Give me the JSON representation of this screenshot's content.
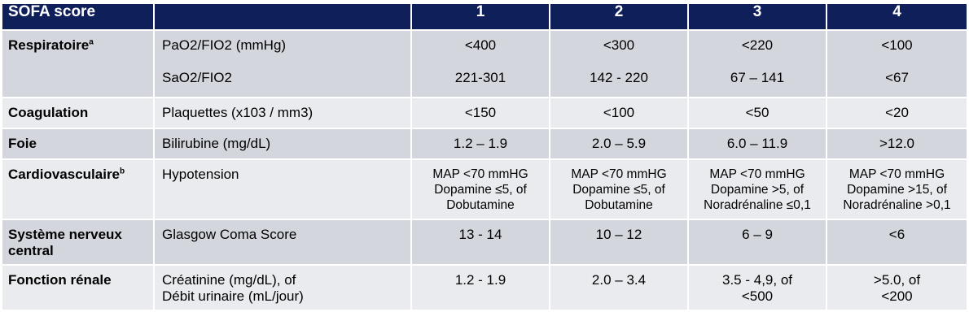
{
  "header": {
    "title": "SOFA score",
    "scores": [
      "1",
      "2",
      "3",
      "4"
    ]
  },
  "rows": [
    {
      "category": "Respiratoire",
      "category_sup": "a",
      "params": [
        "PaO2/FIO2 (mmHg)",
        "SaO2/FIO2"
      ],
      "values": [
        [
          "<400",
          "221-301"
        ],
        [
          "<300",
          "142 - 220"
        ],
        [
          "<220",
          "67 – 141"
        ],
        [
          "<100",
          "<67"
        ]
      ]
    },
    {
      "category": "Coagulation",
      "param": "Plaquettes (x103 / mm3)",
      "values": [
        "<150",
        "<100",
        "<50",
        "<20"
      ]
    },
    {
      "category": "Foie",
      "param": "Bilirubine (mg/dL)",
      "values": [
        "1.2 – 1.9",
        "2.0 – 5.9",
        "6.0 – 11.9",
        ">12.0"
      ]
    },
    {
      "category": "Cardiovasculaire",
      "category_sup": "b",
      "param": "Hypotension",
      "values": [
        [
          "MAP <70 mmHG",
          "Dopamine ≤5, of",
          "Dobutamine"
        ],
        [
          "MAP <70 mmHG",
          "Dopamine ≤5, of",
          "Dobutamine"
        ],
        [
          "MAP <70 mmHG",
          "Dopamine >5, of",
          "Noradrénaline ≤0,1"
        ],
        [
          "MAP <70 mmHG",
          "Dopamine >15, of",
          "Noradrénaline >0,1"
        ]
      ]
    },
    {
      "category_lines": [
        "Système nerveux",
        "central"
      ],
      "param": "Glasgow Coma Score",
      "values": [
        "13 - 14",
        "10 – 12",
        "6 – 9",
        "<6"
      ]
    },
    {
      "category": "Fonction rénale",
      "param_lines": [
        "Créatinine (mg/dL), of",
        "Débit urinaire (mL/jour)"
      ],
      "values": [
        [
          "1.2 - 1.9"
        ],
        [
          "2.0 – 3.4"
        ],
        [
          "3.5 - 4,9, of",
          "<500"
        ],
        [
          ">5.0, of",
          "<200"
        ]
      ]
    }
  ]
}
